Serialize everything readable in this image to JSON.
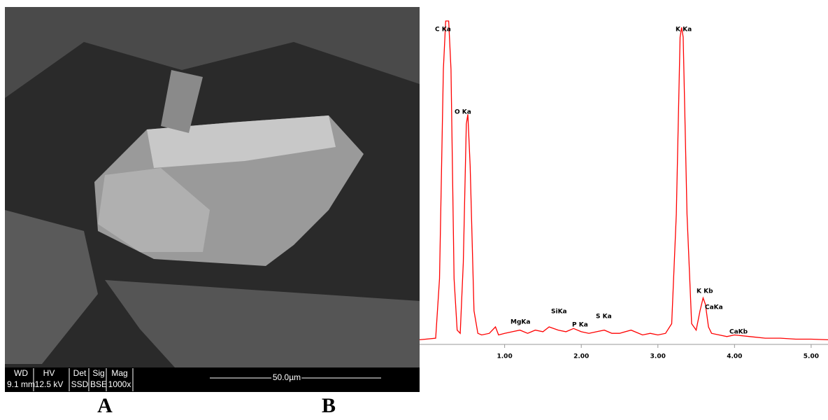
{
  "sem_image": {
    "info_headers": [
      "WD",
      "HV",
      "Det",
      "Sig",
      "Mag"
    ],
    "info_values": [
      "9.1 mm",
      "12.5 kV",
      "SSD",
      "BSE",
      "1000x"
    ],
    "scale_bar": "50.0µm",
    "panel_label": "A"
  },
  "chart_data": {
    "type": "line",
    "panel_label": "B",
    "color": "#ff0000",
    "x": [
      -0.11,
      0.1,
      0.15,
      0.2,
      0.23,
      0.27,
      0.3,
      0.34,
      0.38,
      0.42,
      0.46,
      0.5,
      0.52,
      0.55,
      0.6,
      0.65,
      0.7,
      0.8,
      0.88,
      0.92,
      1.0,
      1.1,
      1.2,
      1.3,
      1.4,
      1.5,
      1.58,
      1.7,
      1.8,
      1.9,
      2.0,
      2.1,
      2.2,
      2.3,
      2.4,
      2.5,
      2.65,
      2.8,
      2.9,
      3.0,
      3.1,
      3.18,
      3.24,
      3.29,
      3.31,
      3.33,
      3.38,
      3.44,
      3.5,
      3.55,
      3.59,
      3.62,
      3.66,
      3.7,
      3.8,
      3.9,
      4.0,
      4.2,
      4.4,
      4.6,
      4.8,
      5.0,
      5.22
    ],
    "values": [
      1,
      1.5,
      20,
      85,
      100,
      100,
      85,
      20,
      4,
      3,
      25,
      68,
      71,
      55,
      10,
      3,
      2.5,
      3,
      5,
      2.5,
      3,
      3.5,
      4,
      3,
      4,
      3.5,
      5,
      4,
      3.5,
      4.5,
      3.5,
      3,
      3.5,
      4,
      3,
      3,
      4,
      2.5,
      3,
      2.5,
      3,
      6,
      40,
      95,
      98,
      95,
      40,
      6,
      4,
      10,
      14,
      12,
      5,
      3,
      2.5,
      2,
      2.5,
      2,
      1.5,
      1.5,
      1.2,
      1.2,
      1
    ],
    "xlim": [
      -0.11,
      5.22
    ],
    "ylim": [
      0,
      100
    ],
    "xticks": [
      {
        "value": 1,
        "label": "1.00"
      },
      {
        "value": 2,
        "label": "2.00"
      },
      {
        "value": 3,
        "label": "3.00"
      },
      {
        "value": 4,
        "label": "4.00"
      },
      {
        "value": 5,
        "label": "5.00"
      }
    ],
    "annotations": [
      "C Ka",
      "O Ka",
      "K Ka",
      "MgKa",
      "SiKa",
      "P Ka",
      "S Ka",
      "K Kb",
      "CaKa",
      "CaKb"
    ]
  }
}
